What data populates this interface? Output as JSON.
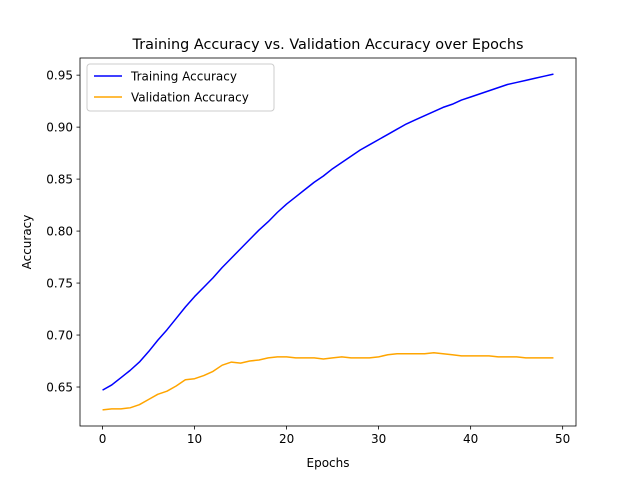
{
  "chart_data": {
    "type": "line",
    "title": "Training Accuracy vs. Validation Accuracy over Epochs",
    "xlabel": "Epochs",
    "ylabel": "Accuracy",
    "xlim": [
      -2.45,
      51.45
    ],
    "ylim": [
      0.6125,
      0.9665
    ],
    "x_ticks": [
      0,
      10,
      20,
      30,
      40,
      50
    ],
    "x_tick_labels": [
      "0",
      "10",
      "20",
      "30",
      "40",
      "50"
    ],
    "y_ticks": [
      0.65,
      0.7,
      0.75,
      0.8,
      0.85,
      0.9,
      0.95
    ],
    "y_tick_labels": [
      "0.65",
      "0.70",
      "0.75",
      "0.80",
      "0.85",
      "0.90",
      "0.95"
    ],
    "grid": false,
    "legend_position": "upper-left",
    "x": [
      0,
      1,
      2,
      3,
      4,
      5,
      6,
      7,
      8,
      9,
      10,
      11,
      12,
      13,
      14,
      15,
      16,
      17,
      18,
      19,
      20,
      21,
      22,
      23,
      24,
      25,
      26,
      27,
      28,
      29,
      30,
      31,
      32,
      33,
      34,
      35,
      36,
      37,
      38,
      39,
      40,
      41,
      42,
      43,
      44,
      45,
      46,
      47,
      48,
      49
    ],
    "series": [
      {
        "name": "Training Accuracy",
        "color": "#0000ff",
        "values": [
          0.647,
          0.652,
          0.659,
          0.666,
          0.674,
          0.684,
          0.695,
          0.705,
          0.716,
          0.727,
          0.737,
          0.746,
          0.755,
          0.765,
          0.774,
          0.783,
          0.792,
          0.801,
          0.809,
          0.818,
          0.826,
          0.833,
          0.84,
          0.847,
          0.853,
          0.86,
          0.866,
          0.872,
          0.878,
          0.883,
          0.888,
          0.893,
          0.898,
          0.903,
          0.907,
          0.911,
          0.915,
          0.919,
          0.922,
          0.926,
          0.929,
          0.932,
          0.935,
          0.938,
          0.941,
          0.943,
          0.945,
          0.947,
          0.949,
          0.951
        ]
      },
      {
        "name": "Validation Accuracy",
        "color": "#ffa500",
        "values": [
          0.628,
          0.629,
          0.629,
          0.63,
          0.633,
          0.638,
          0.643,
          0.646,
          0.651,
          0.657,
          0.658,
          0.661,
          0.665,
          0.671,
          0.674,
          0.673,
          0.675,
          0.676,
          0.678,
          0.679,
          0.679,
          0.678,
          0.678,
          0.678,
          0.677,
          0.678,
          0.679,
          0.678,
          0.678,
          0.678,
          0.679,
          0.681,
          0.682,
          0.682,
          0.682,
          0.682,
          0.683,
          0.682,
          0.681,
          0.68,
          0.68,
          0.68,
          0.68,
          0.679,
          0.679,
          0.679,
          0.678,
          0.678,
          0.678,
          0.678
        ]
      }
    ]
  }
}
